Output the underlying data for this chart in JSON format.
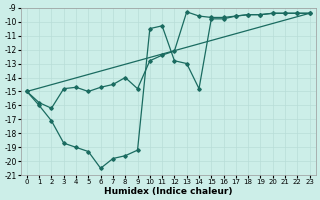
{
  "xlabel": "Humidex (Indice chaleur)",
  "bg_color": "#cceee8",
  "grid_color": "#b8ddd8",
  "line_color": "#1a6b60",
  "xlim": [
    -0.5,
    23.5
  ],
  "ylim": [
    -21,
    -9
  ],
  "yticks": [
    -9,
    -10,
    -11,
    -12,
    -13,
    -14,
    -15,
    -16,
    -17,
    -18,
    -19,
    -20,
    -21
  ],
  "xticks": [
    0,
    1,
    2,
    3,
    4,
    5,
    6,
    7,
    8,
    9,
    10,
    11,
    12,
    13,
    14,
    15,
    16,
    17,
    18,
    19,
    20,
    21,
    22,
    23
  ],
  "line1_x": [
    0,
    1,
    2,
    3,
    4,
    5,
    6,
    7,
    8,
    9,
    10,
    11,
    12,
    13,
    14,
    15,
    16,
    17,
    18,
    19,
    20,
    21,
    22,
    23
  ],
  "line1_y": [
    -15.0,
    -15.8,
    -16.2,
    -14.8,
    -14.7,
    -15.0,
    -14.7,
    -14.5,
    -14.0,
    -14.8,
    -12.8,
    -12.4,
    -12.1,
    -9.3,
    -9.6,
    -9.7,
    -9.7,
    -9.6,
    -9.5,
    -9.5,
    -9.4,
    -9.4,
    -9.4,
    -9.4
  ],
  "line2_x": [
    0,
    1,
    2,
    3,
    4,
    5,
    6,
    7,
    8,
    9,
    10,
    11,
    12,
    13,
    14,
    15,
    16,
    17,
    18,
    19,
    20,
    21,
    22,
    23
  ],
  "line2_y": [
    -15.0,
    -16.0,
    -17.1,
    -18.7,
    -19.0,
    -19.3,
    -20.5,
    -19.8,
    -19.6,
    -19.2,
    -10.5,
    -10.3,
    -12.8,
    -13.0,
    -14.8,
    -9.8,
    -9.8,
    -9.6,
    -9.5,
    -9.5,
    -9.4,
    -9.4,
    -9.4,
    -9.4
  ],
  "line3_x": [
    0,
    23
  ],
  "line3_y": [
    -15.0,
    -9.4
  ]
}
